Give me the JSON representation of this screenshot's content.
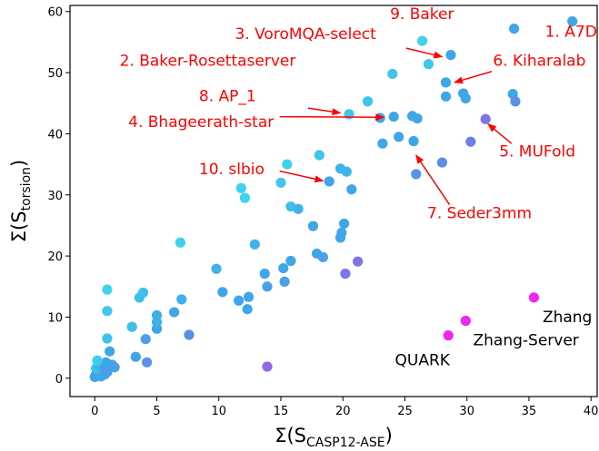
{
  "chart_data": {
    "type": "scatter",
    "xlabel_main": "Σ(S",
    "xlabel_sub": "CASP12-ASE",
    "xlabel_end": ")",
    "ylabel_main": "Σ(S",
    "ylabel_sub": "torsion",
    "ylabel_end": ")",
    "xlim": [
      -2,
      40.5
    ],
    "ylim": [
      -3,
      61
    ],
    "xticks": [
      "0",
      "5",
      "10",
      "15",
      "20",
      "25",
      "30",
      "35",
      "40"
    ],
    "yticks": [
      "0",
      "10",
      "20",
      "30",
      "40",
      "50",
      "60"
    ],
    "xtick_values": [
      0,
      5,
      10,
      15,
      20,
      25,
      30,
      35,
      40
    ],
    "ytick_values": [
      0,
      10,
      20,
      30,
      40,
      50,
      60
    ],
    "grid": false,
    "points": [
      {
        "x": 0.0,
        "y": 0.2,
        "c": "#3fa6e8"
      },
      {
        "x": 0.1,
        "y": 0.6,
        "c": "#4aa0e8"
      },
      {
        "x": 0.2,
        "y": 0.4,
        "c": "#3fa6e8"
      },
      {
        "x": 0.3,
        "y": 0.9,
        "c": "#4aa0e8"
      },
      {
        "x": 0.5,
        "y": 0.3,
        "c": "#3fa6e8"
      },
      {
        "x": 0.6,
        "y": 1.2,
        "c": "#4aa0e8"
      },
      {
        "x": 0.8,
        "y": 0.6,
        "c": "#3fa6e8"
      },
      {
        "x": 1.0,
        "y": 1.0,
        "c": "#4aa0e8"
      },
      {
        "x": 0.1,
        "y": 1.6,
        "c": "#3ac2ea"
      },
      {
        "x": 0.4,
        "y": 2.0,
        "c": "#3ab8ea"
      },
      {
        "x": 0.8,
        "y": 1.8,
        "c": "#4aa0e8"
      },
      {
        "x": 0.9,
        "y": 2.6,
        "c": "#3fa6e8"
      },
      {
        "x": 0.2,
        "y": 2.9,
        "c": "#3fcdeb"
      },
      {
        "x": 1.4,
        "y": 2.2,
        "c": "#3fa6e8"
      },
      {
        "x": 1.6,
        "y": 1.8,
        "c": "#4aa0e8"
      },
      {
        "x": 1.2,
        "y": 4.4,
        "c": "#3fa6e8"
      },
      {
        "x": 1.0,
        "y": 6.5,
        "c": "#3fc0ea"
      },
      {
        "x": 1.0,
        "y": 11.0,
        "c": "#3ecaeb"
      },
      {
        "x": 1.0,
        "y": 14.5,
        "c": "#3fd4ec"
      },
      {
        "x": 3.0,
        "y": 8.4,
        "c": "#3fc0ea"
      },
      {
        "x": 3.3,
        "y": 3.5,
        "c": "#3fa6e8"
      },
      {
        "x": 3.6,
        "y": 13.2,
        "c": "#3fbfea"
      },
      {
        "x": 3.9,
        "y": 14.0,
        "c": "#3fc0ea"
      },
      {
        "x": 4.1,
        "y": 6.4,
        "c": "#4aa0e8"
      },
      {
        "x": 4.2,
        "y": 2.6,
        "c": "#5893e6"
      },
      {
        "x": 5.0,
        "y": 8.1,
        "c": "#3fa6e8"
      },
      {
        "x": 5.0,
        "y": 9.2,
        "c": "#3fb0e9"
      },
      {
        "x": 5.0,
        "y": 10.3,
        "c": "#3fb0e9"
      },
      {
        "x": 6.4,
        "y": 10.8,
        "c": "#3fa6e8"
      },
      {
        "x": 7.0,
        "y": 12.9,
        "c": "#3fb0e9"
      },
      {
        "x": 6.9,
        "y": 22.2,
        "c": "#3fd2ec"
      },
      {
        "x": 7.6,
        "y": 7.1,
        "c": "#5b8fe6"
      },
      {
        "x": 9.8,
        "y": 17.9,
        "c": "#3fb4ea"
      },
      {
        "x": 10.3,
        "y": 14.1,
        "c": "#3fa6e8"
      },
      {
        "x": 11.6,
        "y": 12.7,
        "c": "#3fa6e8"
      },
      {
        "x": 12.3,
        "y": 11.3,
        "c": "#3fa6e8"
      },
      {
        "x": 12.4,
        "y": 13.3,
        "c": "#3fa6e8"
      },
      {
        "x": 11.8,
        "y": 31.1,
        "c": "#3fd2ec"
      },
      {
        "x": 12.1,
        "y": 29.5,
        "c": "#3fd2ec"
      },
      {
        "x": 12.9,
        "y": 21.9,
        "c": "#3fb4ea"
      },
      {
        "x": 13.7,
        "y": 17.1,
        "c": "#3fa6e8"
      },
      {
        "x": 13.9,
        "y": 15.0,
        "c": "#4aa0e8"
      },
      {
        "x": 13.9,
        "y": 1.9,
        "c": "#8f6ae4"
      },
      {
        "x": 15.0,
        "y": 32.0,
        "c": "#3fc6eb"
      },
      {
        "x": 15.2,
        "y": 18.0,
        "c": "#3fa6e8"
      },
      {
        "x": 15.3,
        "y": 15.8,
        "c": "#4aa0e8"
      },
      {
        "x": 15.5,
        "y": 35.0,
        "c": "#3fd2ec"
      },
      {
        "x": 15.8,
        "y": 28.1,
        "c": "#3fbfea"
      },
      {
        "x": 15.8,
        "y": 19.2,
        "c": "#3fa6e8"
      },
      {
        "x": 16.4,
        "y": 27.7,
        "c": "#3fb4ea"
      },
      {
        "x": 17.6,
        "y": 24.9,
        "c": "#3fa6e8"
      },
      {
        "x": 17.9,
        "y": 20.4,
        "c": "#3fa6e8"
      },
      {
        "x": 18.1,
        "y": 36.5,
        "c": "#3fc6eb"
      },
      {
        "x": 18.4,
        "y": 19.8,
        "c": "#4aa0e8"
      },
      {
        "x": 18.9,
        "y": 32.2,
        "c": "#3fa6e8"
      },
      {
        "x": 19.8,
        "y": 34.3,
        "c": "#3fb4ea"
      },
      {
        "x": 19.8,
        "y": 23.0,
        "c": "#3fa6e8"
      },
      {
        "x": 19.9,
        "y": 23.8,
        "c": "#3fa6e8"
      },
      {
        "x": 20.1,
        "y": 25.3,
        "c": "#3fa6e8"
      },
      {
        "x": 20.3,
        "y": 33.8,
        "c": "#3fb4ea"
      },
      {
        "x": 20.2,
        "y": 17.1,
        "c": "#7c75e5"
      },
      {
        "x": 20.7,
        "y": 30.9,
        "c": "#3fa6e8"
      },
      {
        "x": 21.2,
        "y": 19.1,
        "c": "#7c75e5"
      },
      {
        "x": 20.5,
        "y": 43.2,
        "c": "#3fc6eb"
      },
      {
        "x": 22.0,
        "y": 45.3,
        "c": "#3fc6eb"
      },
      {
        "x": 23.0,
        "y": 42.6,
        "c": "#3fa6e8"
      },
      {
        "x": 23.2,
        "y": 38.4,
        "c": "#3fa6e8"
      },
      {
        "x": 24.1,
        "y": 42.8,
        "c": "#3fa6e8"
      },
      {
        "x": 24.0,
        "y": 49.8,
        "c": "#3fc6eb"
      },
      {
        "x": 24.5,
        "y": 39.5,
        "c": "#3fa6e8"
      },
      {
        "x": 25.7,
        "y": 38.8,
        "c": "#3fa6e8"
      },
      {
        "x": 25.6,
        "y": 42.9,
        "c": "#3fa6e8"
      },
      {
        "x": 26.0,
        "y": 42.5,
        "c": "#3fa6e8"
      },
      {
        "x": 26.4,
        "y": 55.2,
        "c": "#3fd2ec"
      },
      {
        "x": 26.9,
        "y": 51.4,
        "c": "#3fc6eb"
      },
      {
        "x": 25.9,
        "y": 33.4,
        "c": "#5893e6"
      },
      {
        "x": 28.0,
        "y": 35.3,
        "c": "#5b8fe6"
      },
      {
        "x": 28.7,
        "y": 52.9,
        "c": "#3fa6e8"
      },
      {
        "x": 28.3,
        "y": 48.4,
        "c": "#3fa6e8"
      },
      {
        "x": 28.3,
        "y": 46.1,
        "c": "#3fa6e8"
      },
      {
        "x": 29.7,
        "y": 46.6,
        "c": "#3fa6e8"
      },
      {
        "x": 29.9,
        "y": 45.8,
        "c": "#3fa6e8"
      },
      {
        "x": 30.3,
        "y": 38.7,
        "c": "#6f7ee6"
      },
      {
        "x": 31.5,
        "y": 42.4,
        "c": "#7c75e5"
      },
      {
        "x": 33.7,
        "y": 46.5,
        "c": "#3fa6e8"
      },
      {
        "x": 33.8,
        "y": 57.2,
        "c": "#3fa6e8"
      },
      {
        "x": 33.9,
        "y": 45.3,
        "c": "#5b8fe6"
      },
      {
        "x": 38.5,
        "y": 58.4,
        "c": "#3fa6e8"
      },
      {
        "x": 28.5,
        "y": 7.0,
        "c": "#f027f0"
      },
      {
        "x": 29.9,
        "y": 9.4,
        "c": "#f027f0"
      },
      {
        "x": 35.4,
        "y": 13.2,
        "c": "#f027f0"
      }
    ],
    "annotations": [
      {
        "text": "1. A7D",
        "lx": 36.3,
        "ly": 55.9,
        "anchor": "start",
        "color": "#ff0000",
        "arrow": null
      },
      {
        "text": "9. Baker",
        "lx": 23.8,
        "ly": 58.8,
        "anchor": "start",
        "color": "#ff0000",
        "arrow": null
      },
      {
        "text": "3. VoroMQA-select",
        "lx": 11.3,
        "ly": 55.5,
        "anchor": "start",
        "color": "#ff0000",
        "arrow": {
          "fx": 25.1,
          "fy": 54.0,
          "tx": 28.0,
          "ty": 52.6
        }
      },
      {
        "text": "2. Baker-Rosettaserver",
        "lx": 2.0,
        "ly": 51.1,
        "anchor": "start",
        "color": "#ff0000",
        "arrow": null
      },
      {
        "text": "6. Kiharalab",
        "lx": 32.1,
        "ly": 51.1,
        "anchor": "start",
        "color": "#ff0000",
        "arrow": {
          "fx": 32.0,
          "fy": 50.2,
          "tx": 29.0,
          "ty": 48.4
        }
      },
      {
        "text": "8. AP_1",
        "lx": 8.4,
        "ly": 45.3,
        "anchor": "start",
        "color": "#ff0000",
        "arrow": {
          "fx": 17.2,
          "fy": 44.2,
          "tx": 19.8,
          "ty": 43.4
        }
      },
      {
        "text": "4. Bhageerath-star",
        "lx": 2.7,
        "ly": 41.1,
        "anchor": "start",
        "color": "#ff0000",
        "arrow": {
          "fx": 14.9,
          "fy": 42.8,
          "tx": 23.3,
          "ty": 42.7
        }
      },
      {
        "text": "5. MUFold",
        "lx": 32.6,
        "ly": 36.3,
        "anchor": "start",
        "color": "#ff0000",
        "arrow": {
          "fx": 33.6,
          "fy": 38.4,
          "tx": 31.7,
          "ty": 41.6
        }
      },
      {
        "text": "10. slbio",
        "lx": 8.4,
        "ly": 33.4,
        "anchor": "start",
        "color": "#ff0000",
        "arrow": {
          "fx": 14.9,
          "fy": 33.9,
          "tx": 18.4,
          "ty": 32.3
        }
      },
      {
        "text": "7. Seder3mm",
        "lx": 26.8,
        "ly": 26.2,
        "anchor": "start",
        "color": "#ff0000",
        "arrow": {
          "fx": 28.6,
          "fy": 28.4,
          "tx": 25.9,
          "ty": 36.5
        }
      },
      {
        "text": "Zhang",
        "lx": 36.1,
        "ly": 9.2,
        "anchor": "start",
        "color": "#000000",
        "arrow": null
      },
      {
        "text": "Zhang-Server",
        "lx": 30.5,
        "ly": 5.4,
        "anchor": "start",
        "color": "#000000",
        "arrow": null
      },
      {
        "text": "QUARK",
        "lx": 24.2,
        "ly": 2.1,
        "anchor": "start",
        "color": "#000000",
        "arrow": null
      }
    ]
  }
}
